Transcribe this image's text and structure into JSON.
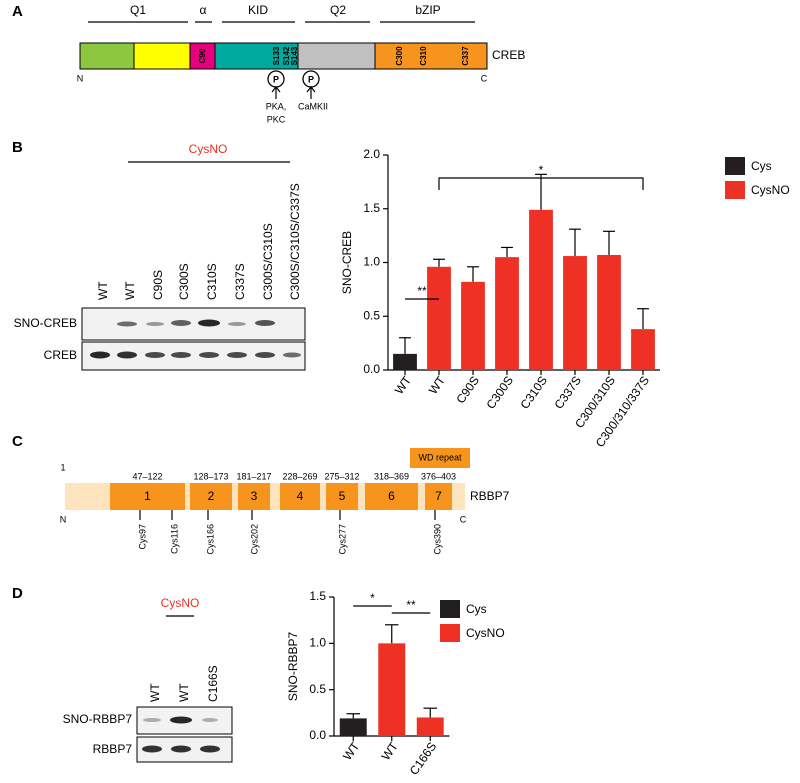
{
  "panel_labels": [
    "A",
    "B",
    "C",
    "D"
  ],
  "creb_diagram": {
    "domains": [
      "Q1",
      "α",
      "KID",
      "Q2",
      "bZIP"
    ],
    "protein": "CREB",
    "n_term": "N",
    "c_term": "C",
    "residues": [
      "C90",
      "S133",
      "S142",
      "S143",
      "C300",
      "C310",
      "C337"
    ],
    "phospho": [
      "P",
      "P"
    ],
    "kinases": [
      "PKA,",
      "PKC",
      "CaMKII"
    ]
  },
  "blot_b": {
    "treatment": "CysNO",
    "lanes": [
      "WT",
      "WT",
      "C90S",
      "C300S",
      "C310S",
      "C337S",
      "C300S/C310S",
      "C300S/C310S/C337S"
    ],
    "rows": [
      "SNO-CREB",
      "CREB"
    ]
  },
  "rbbp7_diagram": {
    "legend": "WD repeat",
    "start": "1",
    "ranges": [
      "47–122",
      "128–173",
      "181–217",
      "228–269",
      "275–312",
      "318–369",
      "376–403"
    ],
    "repeats": [
      "1",
      "2",
      "3",
      "4",
      "5",
      "6",
      "7"
    ],
    "protein": "RBBP7",
    "n_term": "N",
    "c_term": "C",
    "cysteines": [
      "Cys97",
      "Cys116",
      "Cys166",
      "Cys202",
      "Cys277",
      "Cys390"
    ]
  },
  "blot_d": {
    "treatment": "CysNO",
    "lanes": [
      "WT",
      "WT",
      "C166S"
    ],
    "rows": [
      "SNO-RBBP7",
      "RBBP7"
    ]
  },
  "chart_data": [
    {
      "type": "bar",
      "ylabel": "SNO-CREB",
      "categories": [
        "WT",
        "WT",
        "C90S",
        "C300S",
        "C310S",
        "C337S",
        "C300/310S",
        "C300/310/337S"
      ],
      "series": [
        {
          "name": "Cys",
          "color": "#231f20",
          "values": [
            0.15,
            null,
            null,
            null,
            null,
            null,
            null,
            null
          ],
          "errors": [
            0.15,
            null,
            null,
            null,
            null,
            null,
            null,
            null
          ]
        },
        {
          "name": "CysNO",
          "color": "#ee3124",
          "values": [
            null,
            0.96,
            0.82,
            1.05,
            1.49,
            1.06,
            1.07,
            0.38
          ],
          "errors": [
            null,
            0.07,
            0.14,
            0.09,
            0.33,
            0.25,
            0.22,
            0.19
          ]
        }
      ],
      "ylim": [
        0,
        2.0
      ],
      "yticks": [
        {
          "value": 0,
          "label": "0.0"
        },
        {
          "value": 0.5,
          "label": "0.5"
        },
        {
          "value": 1,
          "label": "1.0"
        },
        {
          "value": 1.5,
          "label": "1.5"
        },
        {
          "value": 2,
          "label": "2.0"
        }
      ],
      "annotations": [
        {
          "text": "**"
        },
        {
          "text": "*"
        }
      ],
      "legend": "right"
    },
    {
      "type": "bar",
      "ylabel": "SNO-RBBP7",
      "categories": [
        "WT",
        "WT",
        "C166S"
      ],
      "series": [
        {
          "name": "Cys",
          "color": "#231f20",
          "values": [
            0.19,
            null,
            null
          ],
          "errors": [
            0.05,
            null,
            null
          ]
        },
        {
          "name": "CysNO",
          "color": "#ee3124",
          "values": [
            null,
            1.0,
            0.2
          ],
          "errors": [
            null,
            0.2,
            0.1
          ]
        }
      ],
      "ylim": [
        0,
        1.5
      ],
      "yticks": [
        {
          "value": 0,
          "label": "0.0"
        },
        {
          "value": 0.5,
          "label": "0.5"
        },
        {
          "value": 1,
          "label": "1.0"
        },
        {
          "value": 1.5,
          "label": "1.5"
        }
      ],
      "annotations": [
        {
          "text": "*"
        },
        {
          "text": "**"
        }
      ],
      "legend": "right"
    }
  ]
}
